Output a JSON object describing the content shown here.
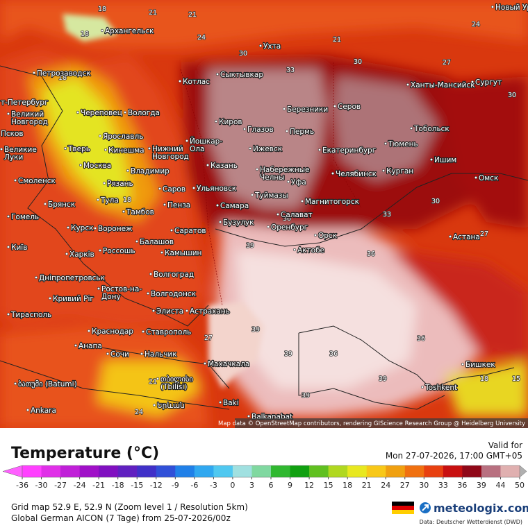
{
  "map": {
    "title": "Temperature (°C)",
    "valid_label": "Valid for",
    "valid_time": "Mon 27-07-2026, 17:00 GMT+05",
    "attribution": "Map data © OpenStreetMap contributors, rendering GIScience Research Group @ Heidelberg University",
    "cities": [
      "Новый Ур",
      "Архангельск",
      "Ухта",
      "Петрозаводск",
      "Сыктывкар",
      "Котлас",
      "Ханты-Мансийск",
      "Сургут",
      "т-Петербург",
      "Березники",
      "Серов",
      "Великий\nНовгород",
      "Череповец",
      "Вологда",
      "Киров",
      "Глазов",
      "Пермь",
      "Тобольск",
      "Ярославль",
      "Псков",
      "Тверь",
      "Кинешма",
      "Нижний\nНовгород",
      "Йошкар-\nОла",
      "Ижевск",
      "Екатеринбург",
      "Тюмень",
      "Великие\nЛуки",
      "Москва",
      "Владимир",
      "Казань",
      "Набережные\nЧелны",
      "Челябинск",
      "Курган",
      "Ишим",
      "Смоленск",
      "Рязань",
      "Уфа",
      "Саров",
      "Ульяновск",
      "Омск",
      "Тула",
      "Туймазы",
      "Брянск",
      "Самара",
      "Пенза",
      "Магнитогорск",
      "Тамбов",
      "Гомель",
      "Салават",
      "Бузулук",
      "Курск",
      "Воронеж",
      "Саратов",
      "Оренбург",
      "Орск",
      "Астана",
      "Балашов",
      "Київ",
      "Харків",
      "Россошь",
      "Камышин",
      "Актобе",
      "Волгоград",
      "Дніпропетровськ",
      "Ростов-на-\nДону",
      "Волгодонск",
      "Кривий Ріг",
      "Элиста",
      "Астрахань",
      "Тирасполь",
      "Краснодар",
      "Ставрополь",
      "Анапа",
      "Сочи",
      "Нальчик",
      "Махачкала",
      "Бишкек",
      "ბათუმი (Batumi)",
      "თბილისი\n(Tbilisi)",
      "Toshkent",
      "Ankara",
      "Baki",
      "Երևան",
      "Balkanabat"
    ],
    "isotherm_labels": [
      18,
      21,
      21,
      24,
      21,
      24,
      27,
      30,
      33,
      30,
      18,
      36,
      39,
      36,
      39,
      36,
      36,
      39,
      39,
      39,
      27,
      21,
      24,
      18,
      15,
      30,
      30,
      33,
      18,
      18,
      27
    ]
  },
  "legend": {
    "ticks": [
      -36,
      -30,
      -27,
      -24,
      -21,
      -18,
      -15,
      -12,
      -9,
      -6,
      -3,
      0,
      3,
      6,
      9,
      12,
      15,
      18,
      21,
      24,
      27,
      30,
      33,
      36,
      39,
      44,
      50
    ]
  },
  "footer": {
    "grid": "Grid map 52.9 E, 52.9 N (Zoom level 1 / Resolution 5km)",
    "model": "Global German AICON (7 Tage)  from  25-07-2026/00z",
    "brand": "meteologix.com",
    "source": "Data: Deutscher Wetterdienst (DWD)"
  }
}
